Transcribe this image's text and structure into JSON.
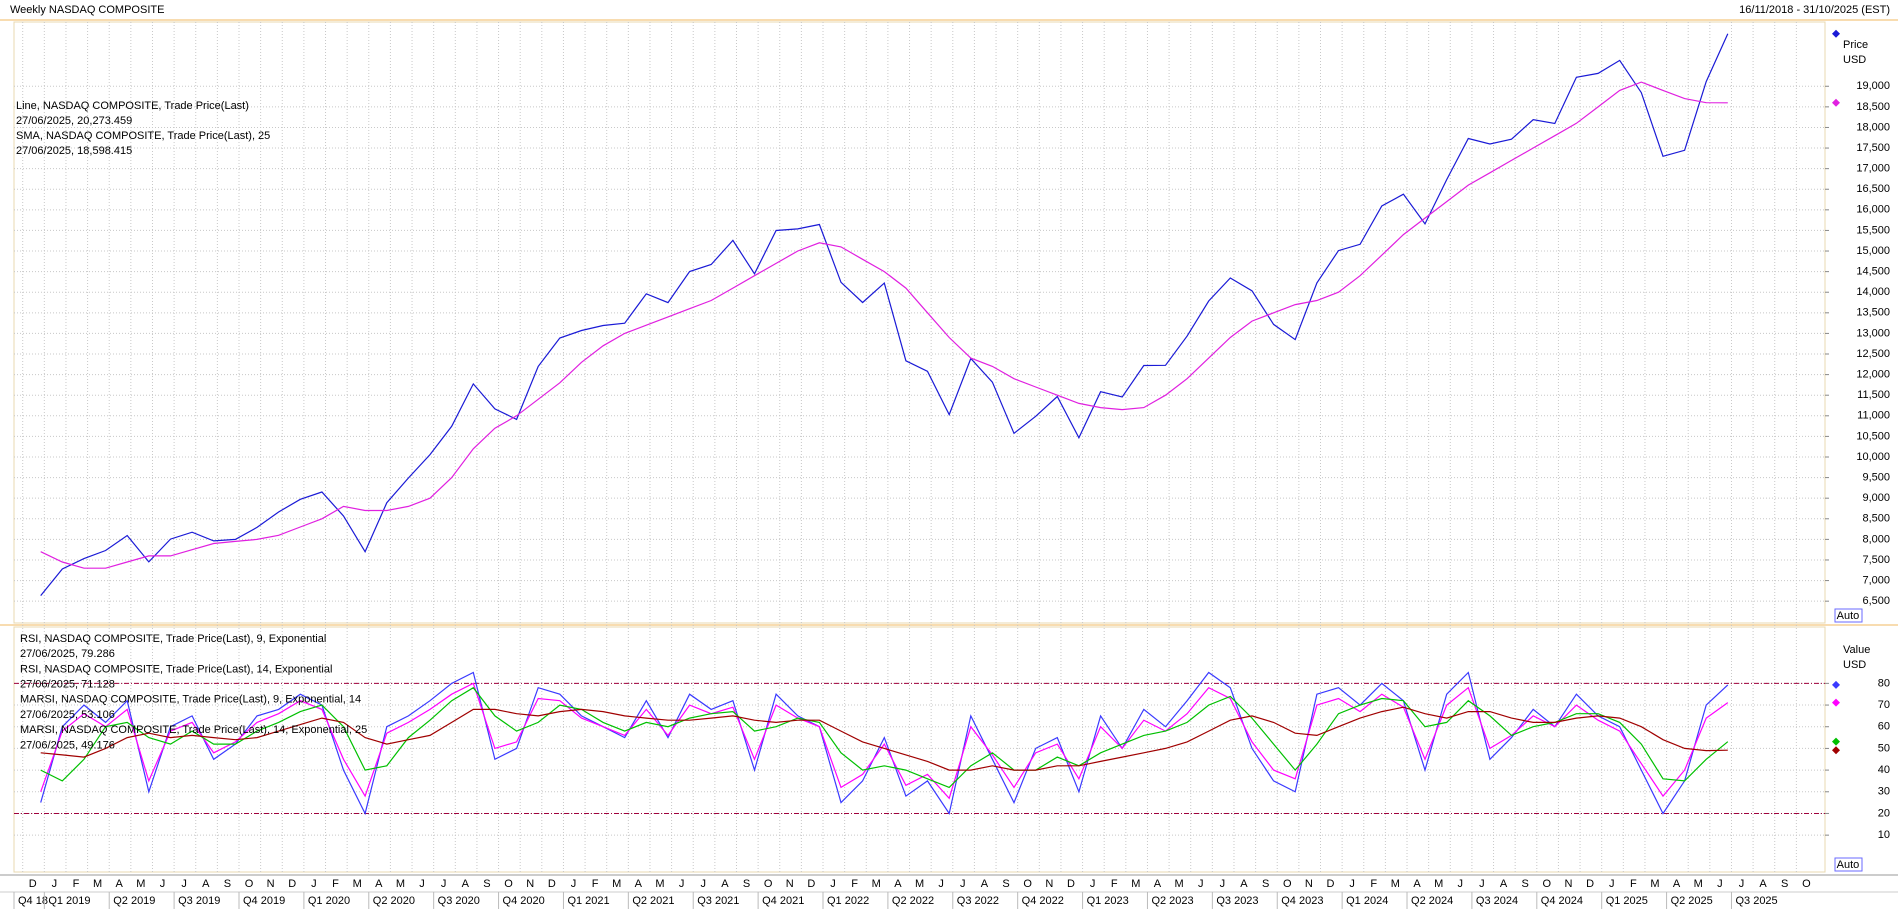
{
  "header": {
    "title": "Weekly NASDAQ COMPOSITE",
    "range": "16/11/2018 - 31/10/2025 (EST)"
  },
  "x_axis": {
    "months": [
      "D",
      "J",
      "F",
      "M",
      "A",
      "M",
      "J",
      "J",
      "A",
      "S",
      "O",
      "N",
      "D",
      "J",
      "F",
      "M",
      "A",
      "M",
      "J",
      "J",
      "A",
      "S",
      "O",
      "N",
      "D",
      "J",
      "F",
      "M",
      "A",
      "M",
      "J",
      "J",
      "A",
      "S",
      "O",
      "N",
      "D",
      "J",
      "F",
      "M",
      "A",
      "M",
      "J",
      "J",
      "A",
      "S",
      "O",
      "N",
      "D",
      "J",
      "F",
      "M",
      "A",
      "M",
      "J",
      "J",
      "A",
      "S",
      "O",
      "N",
      "D",
      "J",
      "F",
      "M",
      "A",
      "M",
      "J",
      "J",
      "A",
      "S",
      "O",
      "N",
      "D",
      "J",
      "F",
      "M",
      "A",
      "M",
      "J",
      "J",
      "A",
      "S",
      "O"
    ],
    "quarters": [
      "Q4 18",
      "Q1 2019",
      "Q2 2019",
      "Q3 2019",
      "Q4 2019",
      "Q1 2020",
      "Q2 2020",
      "Q3 2020",
      "Q4 2020",
      "Q1 2021",
      "Q2 2021",
      "Q3 2021",
      "Q4 2021",
      "Q1 2022",
      "Q2 2022",
      "Q3 2022",
      "Q4 2022",
      "Q1 2023",
      "Q2 2023",
      "Q3 2023",
      "Q4 2023",
      "Q1 2024",
      "Q2 2024",
      "Q3 2024",
      "Q4 2024",
      "Q1 2025",
      "Q2 2025",
      "Q3 2025"
    ]
  },
  "chart_data": [
    {
      "type": "line",
      "y_axis_title": "Price",
      "y_axis_unit": "USD",
      "scale_mode": "Auto",
      "x": [
        "2018-12",
        "2019-01",
        "2019-02",
        "2019-03",
        "2019-04",
        "2019-05",
        "2019-06",
        "2019-07",
        "2019-08",
        "2019-09",
        "2019-10",
        "2019-11",
        "2019-12",
        "2020-01",
        "2020-02",
        "2020-03",
        "2020-04",
        "2020-05",
        "2020-06",
        "2020-07",
        "2020-08",
        "2020-09",
        "2020-10",
        "2020-11",
        "2020-12",
        "2021-01",
        "2021-02",
        "2021-03",
        "2021-04",
        "2021-05",
        "2021-06",
        "2021-07",
        "2021-08",
        "2021-09",
        "2021-10",
        "2021-11",
        "2021-12",
        "2022-01",
        "2022-02",
        "2022-03",
        "2022-04",
        "2022-05",
        "2022-06",
        "2022-07",
        "2022-08",
        "2022-09",
        "2022-10",
        "2022-11",
        "2022-12",
        "2023-01",
        "2023-02",
        "2023-03",
        "2023-04",
        "2023-05",
        "2023-06",
        "2023-07",
        "2023-08",
        "2023-09",
        "2023-10",
        "2023-11",
        "2023-12",
        "2024-01",
        "2024-02",
        "2024-03",
        "2024-04",
        "2024-05",
        "2024-06",
        "2024-07",
        "2024-08",
        "2024-09",
        "2024-10",
        "2024-11",
        "2024-12",
        "2025-01",
        "2025-02",
        "2025-03",
        "2025-04",
        "2025-05",
        "2025-06"
      ],
      "ylim": [
        5970,
        20560
      ],
      "yticks": [
        {
          "value": 6500,
          "label": "6,500"
        },
        {
          "value": 7000,
          "label": "7,000"
        },
        {
          "value": 7500,
          "label": "7,500"
        },
        {
          "value": 8000,
          "label": "8,000"
        },
        {
          "value": 8500,
          "label": "8,500"
        },
        {
          "value": 9000,
          "label": "9,000"
        },
        {
          "value": 9500,
          "label": "9,500"
        },
        {
          "value": 10000,
          "label": "10,000"
        },
        {
          "value": 10500,
          "label": "10,500"
        },
        {
          "value": 11000,
          "label": "11,000"
        },
        {
          "value": 11500,
          "label": "11,500"
        },
        {
          "value": 12000,
          "label": "12,000"
        },
        {
          "value": 12500,
          "label": "12,500"
        },
        {
          "value": 13000,
          "label": "13,000"
        },
        {
          "value": 13500,
          "label": "13,500"
        },
        {
          "value": 14000,
          "label": "14,000"
        },
        {
          "value": 14500,
          "label": "14,500"
        },
        {
          "value": 15000,
          "label": "15,000"
        },
        {
          "value": 15500,
          "label": "15,500"
        },
        {
          "value": 16000,
          "label": "16,000"
        },
        {
          "value": 16500,
          "label": "16,500"
        },
        {
          "value": 17000,
          "label": "17,000"
        },
        {
          "value": 17500,
          "label": "17,500"
        },
        {
          "value": 18000,
          "label": "18,000"
        },
        {
          "value": 18500,
          "label": "18,500"
        },
        {
          "value": 19000,
          "label": "19,000"
        }
      ],
      "grid": true,
      "series": [
        {
          "name": "Line, NASDAQ COMPOSITE, Trade Price(Last)",
          "last_label": "27/06/2025, 20,273.459",
          "color": "#1a1ad6",
          "values": [
            6635,
            7282,
            7533,
            7729,
            8095,
            7453,
            8006,
            8175,
            7963,
            7999,
            8292,
            8665,
            8973,
            9151,
            8567,
            7700,
            8890,
            9490,
            10058,
            10745,
            11775,
            11168,
            10912,
            12199,
            12888,
            13070,
            13192,
            13247,
            13962,
            13749,
            14504,
            14673,
            15259,
            14448,
            15498,
            15538,
            15645,
            14240,
            13751,
            14221,
            12335,
            12081,
            11029,
            12391,
            11816,
            10576,
            10988,
            11468,
            10466,
            11585,
            11456,
            12222,
            12227,
            12935,
            13788,
            14346,
            14035,
            13219,
            12851,
            14226,
            15011,
            15164,
            16092,
            16379,
            15658,
            16735,
            17733,
            17599,
            17714,
            18189,
            18095,
            19218,
            19311,
            19627,
            18847,
            17299,
            17446,
            19114,
            20273.459
          ]
        },
        {
          "name": "SMA, NASDAQ COMPOSITE, Trade Price(Last),  25",
          "last_label": "27/06/2025, 18,598.415",
          "color": "#e020e0",
          "values": [
            7700,
            7450,
            7300,
            7300,
            7450,
            7600,
            7600,
            7750,
            7900,
            7950,
            8000,
            8100,
            8300,
            8500,
            8800,
            8700,
            8700,
            8800,
            9000,
            9500,
            10200,
            10700,
            11000,
            11400,
            11800,
            12300,
            12700,
            13000,
            13200,
            13400,
            13600,
            13800,
            14100,
            14400,
            14700,
            15000,
            15200,
            15100,
            14800,
            14500,
            14100,
            13500,
            12900,
            12400,
            12200,
            11900,
            11700,
            11500,
            11300,
            11200,
            11150,
            11200,
            11500,
            11900,
            12400,
            12900,
            13300,
            13500,
            13700,
            13800,
            14000,
            14400,
            14900,
            15400,
            15800,
            16200,
            16600,
            16900,
            17200,
            17500,
            17800,
            18100,
            18500,
            18900,
            19100,
            18900,
            18700,
            18600,
            18598.415
          ]
        }
      ]
    },
    {
      "type": "line",
      "y_axis_title": "Value",
      "y_axis_unit": "USD",
      "scale_mode": "Auto",
      "x": [
        "2018-12",
        "2019-01",
        "2019-02",
        "2019-03",
        "2019-04",
        "2019-05",
        "2019-06",
        "2019-07",
        "2019-08",
        "2019-09",
        "2019-10",
        "2019-11",
        "2019-12",
        "2020-01",
        "2020-02",
        "2020-03",
        "2020-04",
        "2020-05",
        "2020-06",
        "2020-07",
        "2020-08",
        "2020-09",
        "2020-10",
        "2020-11",
        "2020-12",
        "2021-01",
        "2021-02",
        "2021-03",
        "2021-04",
        "2021-05",
        "2021-06",
        "2021-07",
        "2021-08",
        "2021-09",
        "2021-10",
        "2021-11",
        "2021-12",
        "2022-01",
        "2022-02",
        "2022-03",
        "2022-04",
        "2022-05",
        "2022-06",
        "2022-07",
        "2022-08",
        "2022-09",
        "2022-10",
        "2022-11",
        "2022-12",
        "2023-01",
        "2023-02",
        "2023-03",
        "2023-04",
        "2023-05",
        "2023-06",
        "2023-07",
        "2023-08",
        "2023-09",
        "2023-10",
        "2023-11",
        "2023-12",
        "2024-01",
        "2024-02",
        "2024-03",
        "2024-04",
        "2024-05",
        "2024-06",
        "2024-07",
        "2024-08",
        "2024-09",
        "2024-10",
        "2024-11",
        "2024-12",
        "2025-01",
        "2025-02",
        "2025-03",
        "2025-04",
        "2025-05",
        "2025-06"
      ],
      "ylim": [
        -7,
        106
      ],
      "yticks": [
        10,
        20,
        30,
        40,
        50,
        60,
        70,
        80
      ],
      "grid": true,
      "reference_lines": {
        "values": [
          20,
          80
        ],
        "color": "#a0003c"
      },
      "series": [
        {
          "name": "RSI, NASDAQ COMPOSITE, Trade Price(Last),  9, Exponential",
          "last_label": "27/06/2025, 79.286",
          "color": "#3a3aff",
          "values": [
            25,
            60,
            70,
            62,
            72,
            30,
            60,
            65,
            45,
            52,
            65,
            68,
            75,
            70,
            40,
            20,
            60,
            65,
            72,
            80,
            85,
            45,
            50,
            78,
            75,
            65,
            60,
            55,
            72,
            55,
            75,
            68,
            72,
            40,
            75,
            65,
            60,
            25,
            35,
            55,
            28,
            35,
            20,
            65,
            45,
            25,
            50,
            55,
            30,
            65,
            50,
            68,
            60,
            72,
            85,
            78,
            50,
            35,
            30,
            75,
            78,
            70,
            80,
            72,
            40,
            75,
            85,
            45,
            55,
            68,
            60,
            75,
            65,
            60,
            40,
            20,
            35,
            70,
            79.286
          ]
        },
        {
          "name": "RSI, NASDAQ COMPOSITE, Trade Price(Last),  14, Exponential",
          "last_label": "27/06/2025, 71.128",
          "color": "#ff00ff",
          "values": [
            30,
            58,
            66,
            60,
            68,
            35,
            58,
            62,
            48,
            53,
            62,
            66,
            72,
            68,
            45,
            28,
            57,
            62,
            68,
            75,
            80,
            50,
            53,
            73,
            72,
            64,
            60,
            56,
            68,
            56,
            70,
            66,
            69,
            45,
            70,
            64,
            60,
            32,
            38,
            52,
            33,
            38,
            27,
            60,
            47,
            32,
            48,
            52,
            36,
            60,
            50,
            63,
            58,
            66,
            78,
            73,
            53,
            40,
            36,
            70,
            73,
            67,
            75,
            69,
            45,
            70,
            78,
            50,
            56,
            65,
            60,
            70,
            63,
            58,
            43,
            28,
            40,
            64,
            71.128
          ]
        },
        {
          "name": "MARSI, NASDAQ COMPOSITE, Trade Price(Last),  9, Exponential, 14",
          "last_label": "27/06/2025, 53.106",
          "color": "#00c000",
          "values": [
            40,
            35,
            45,
            60,
            62,
            55,
            52,
            58,
            52,
            52,
            58,
            62,
            67,
            70,
            60,
            40,
            42,
            55,
            63,
            72,
            78,
            65,
            58,
            62,
            70,
            68,
            62,
            58,
            62,
            60,
            64,
            66,
            67,
            58,
            60,
            64,
            62,
            48,
            40,
            42,
            40,
            36,
            32,
            42,
            48,
            40,
            40,
            46,
            42,
            48,
            52,
            56,
            58,
            62,
            70,
            74,
            64,
            52,
            40,
            52,
            66,
            70,
            73,
            72,
            60,
            62,
            72,
            65,
            56,
            60,
            62,
            66,
            66,
            62,
            52,
            36,
            35,
            45,
            53.106
          ]
        },
        {
          "name": "MARSI, NASDAQ COMPOSITE, Trade Price(Last),  14, Exponential, 25",
          "last_label": "27/06/2025, 49.176",
          "color": "#a00000",
          "values": [
            48,
            47,
            46,
            50,
            55,
            57,
            55,
            56,
            55,
            54,
            55,
            58,
            61,
            64,
            62,
            55,
            52,
            54,
            56,
            62,
            68,
            68,
            66,
            65,
            67,
            68,
            67,
            65,
            64,
            63,
            63,
            64,
            65,
            63,
            62,
            63,
            63,
            58,
            53,
            50,
            47,
            44,
            40,
            40,
            42,
            40,
            40,
            42,
            42,
            44,
            46,
            48,
            50,
            53,
            58,
            63,
            65,
            62,
            57,
            56,
            60,
            64,
            67,
            69,
            66,
            64,
            67,
            67,
            64,
            62,
            62,
            64,
            65,
            64,
            60,
            54,
            50,
            49,
            49.176
          ]
        }
      ]
    }
  ]
}
